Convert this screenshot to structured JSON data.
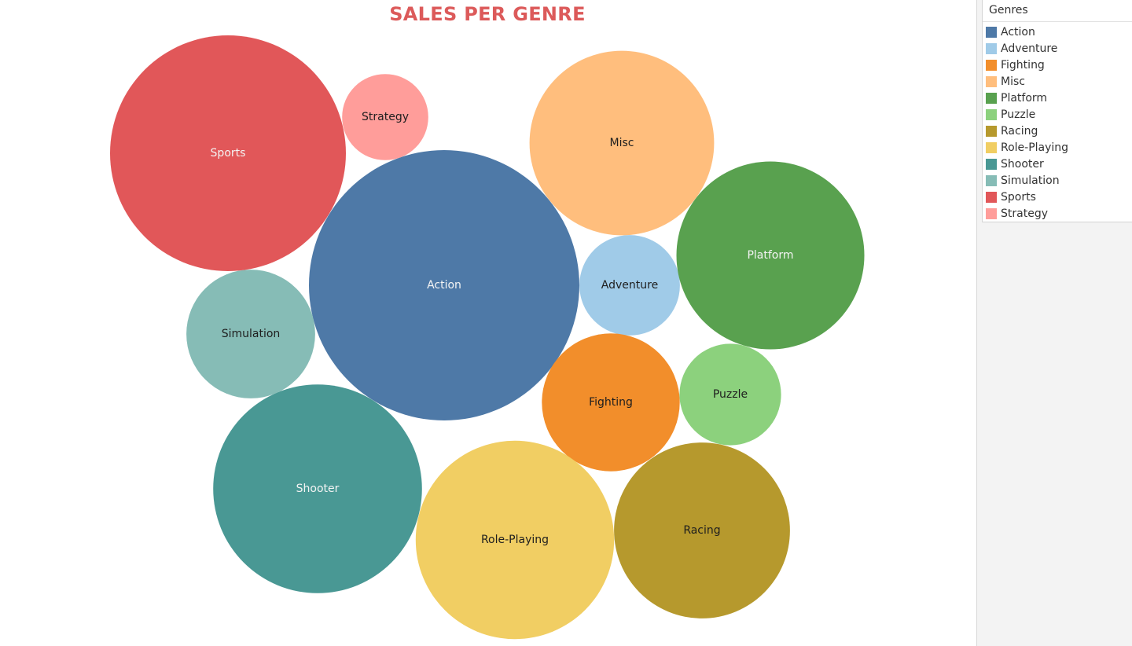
{
  "chart_data": {
    "type": "bubble",
    "title": "SALES PER GENRE",
    "legend_title": "Genres",
    "legend_placement": "right",
    "categories": [
      "Action",
      "Adventure",
      "Fighting",
      "Misc",
      "Platform",
      "Puzzle",
      "Racing",
      "Role-Playing",
      "Shooter",
      "Simulation",
      "Sports",
      "Strategy"
    ],
    "values": [
      1722,
      238,
      448,
      802,
      831,
      243,
      729,
      927,
      1026,
      390,
      1309,
      175
    ],
    "value_note": "relative bubble sizes estimated from bubble area",
    "colors": {
      "Action": "#4e79a7",
      "Adventure": "#a0cbe8",
      "Fighting": "#f28e2b",
      "Misc": "#ffbe7d",
      "Platform": "#59a14f",
      "Puzzle": "#8cd17d",
      "Racing": "#b6992d",
      "Role-Playing": "#f1ce63",
      "Shooter": "#499894",
      "Simulation": "#86bcb6",
      "Sports": "#e15759",
      "Strategy": "#ff9d9a"
    },
    "light_label_categories": [
      "Action",
      "Platform",
      "Shooter",
      "Sports"
    ]
  }
}
